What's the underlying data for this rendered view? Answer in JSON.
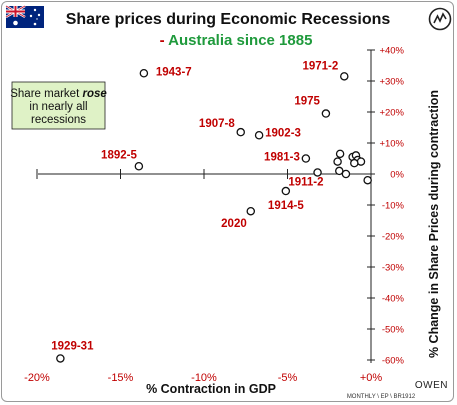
{
  "chart_data": {
    "type": "scatter",
    "title": "Share prices during Economic Recessions",
    "subtitle_prefix": "- ",
    "subtitle_main": "Australia since 1885",
    "xlabel": "% Contraction in GDP",
    "ylabel": "% Change in Share Prices during contraction",
    "xlim": [
      -21,
      0.5
    ],
    "ylim": [
      -62,
      43
    ],
    "x_ticks": [
      {
        "value": -20,
        "label": "-20%"
      },
      {
        "value": -15,
        "label": "-15%"
      },
      {
        "value": -10,
        "label": "-10%"
      },
      {
        "value": -5,
        "label": "-5%"
      },
      {
        "value": 0,
        "label": "+0%"
      }
    ],
    "y_ticks": [
      {
        "value": 40,
        "label": "+40%"
      },
      {
        "value": 30,
        "label": "+30%"
      },
      {
        "value": 20,
        "label": "+20%"
      },
      {
        "value": 10,
        "label": "+10%"
      },
      {
        "value": 0,
        "label": "0%"
      },
      {
        "value": -10,
        "label": "-10%"
      },
      {
        "value": -20,
        "label": "-20%"
      },
      {
        "value": -30,
        "label": "-30%"
      },
      {
        "value": -40,
        "label": "-40%"
      },
      {
        "value": -50,
        "label": "-50%"
      },
      {
        "value": -60,
        "label": "-60%"
      }
    ],
    "points": [
      {
        "label": "1943-7",
        "x": -13.6,
        "y": 32.5
      },
      {
        "label": "1971-2",
        "x": -1.6,
        "y": 31.5
      },
      {
        "label": "1975",
        "x": -2.7,
        "y": 19.5
      },
      {
        "label": "1907-8",
        "x": -7.8,
        "y": 13.5
      },
      {
        "label": "1902-3",
        "x": -6.7,
        "y": 12.5
      },
      {
        "label": "1892-5",
        "x": -13.9,
        "y": 2.5
      },
      {
        "label": "1981-3",
        "x": -3.9,
        "y": 5.0
      },
      {
        "label": "1911-2",
        "x": -3.2,
        "y": 0.5
      },
      {
        "label": "1914-5",
        "x": -5.1,
        "y": -5.5
      },
      {
        "label": "2020",
        "x": -7.2,
        "y": -12.0
      },
      {
        "label": "1929-31",
        "x": -18.6,
        "y": -59.5
      },
      {
        "label": "",
        "x": -1.85,
        "y": 6.5
      },
      {
        "label": "",
        "x": -2.0,
        "y": 4.0
      },
      {
        "label": "",
        "x": -1.1,
        "y": 5.5
      },
      {
        "label": "",
        "x": -0.9,
        "y": 6.0
      },
      {
        "label": "",
        "x": -0.8,
        "y": 4.5
      },
      {
        "label": "",
        "x": -0.6,
        "y": 4.0
      },
      {
        "label": "",
        "x": -1.0,
        "y": 3.5
      },
      {
        "label": "",
        "x": -1.9,
        "y": 1.0
      },
      {
        "label": "",
        "x": -1.5,
        "y": 0.0
      },
      {
        "label": "",
        "x": -0.2,
        "y": -2.0
      }
    ],
    "grid": false,
    "legend": "none"
  },
  "annotation": {
    "line1": "Share market ",
    "line1_emph": "rose",
    "line2": "in nearly all",
    "line3": "recessions",
    "fill": "#dff2c6"
  },
  "footer": {
    "source": "MONTHLY \\ EP \\ BR1912",
    "brand": "OWEN"
  },
  "colors": {
    "label_red": "#c00000",
    "subtitle_green": "#1f9a3c",
    "flag_blue": "#00247d"
  },
  "icons": {
    "flag": "australian-flag-icon",
    "logo": "owen-logo-icon"
  }
}
